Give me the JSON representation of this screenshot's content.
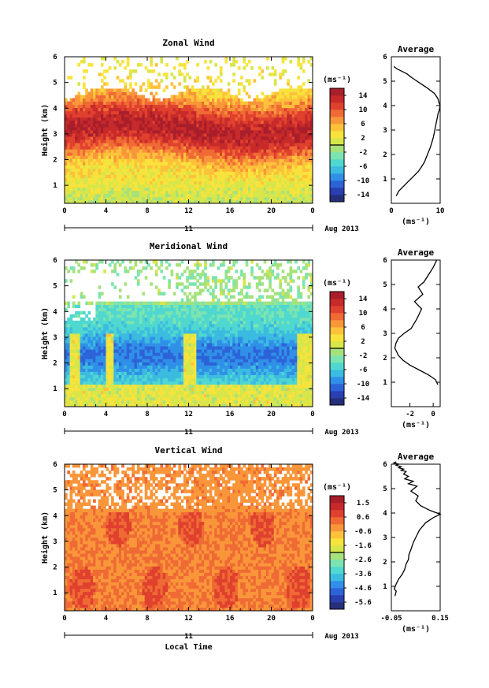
{
  "chart_data": [
    {
      "type": "heatmap",
      "title": "Zonal Wind",
      "ylabel": "Height (km)",
      "xticks": [
        "0",
        "4",
        "8",
        "12",
        "16",
        "20",
        "0"
      ],
      "yticks": [
        "1",
        "2",
        "3",
        "4",
        "5",
        "6"
      ],
      "xlim": [
        0,
        24
      ],
      "ylim": [
        0.3,
        6
      ],
      "date_label": "Aug 2013",
      "day_label": "11",
      "colorbar": {
        "unit": "(ms⁻¹)",
        "ticks": [
          "14",
          "10",
          "6",
          "2",
          "-2",
          "-6",
          "-10",
          "-14"
        ],
        "range": [
          -16,
          16
        ],
        "colors": [
          "#262f7a",
          "#2a3fb0",
          "#2d63d8",
          "#3090e8",
          "#3cbbe0",
          "#4fd8d0",
          "#7be4b0",
          "#a6e27c",
          "#d7e64a",
          "#f8e33c",
          "#fdc23a",
          "#f9963a",
          "#ef6a34",
          "#e0402e",
          "#c72a2a",
          "#a81e2a"
        ]
      }
    },
    {
      "type": "line",
      "title": "Average",
      "xlabel": "(ms⁻¹)",
      "xticks": [
        "0",
        "10"
      ],
      "xlim": [
        0,
        10
      ],
      "yticks": [
        "1",
        "2",
        "3",
        "4",
        "5",
        "6"
      ],
      "ylim": [
        0,
        6
      ],
      "series": [
        {
          "x": [
            1,
            1.5,
            2.5,
            3.5,
            4.5,
            5.5,
            6.2,
            6.8,
            7.2,
            7.6,
            8,
            8.3,
            8.6,
            8.8,
            9.0,
            9.2,
            9.3,
            9.4,
            9.5,
            9.6,
            9.8,
            9.9,
            10,
            9.8,
            9.5,
            8.8,
            7.5,
            6,
            4.5,
            3.8,
            3.2,
            2.2,
            1.2,
            0.5
          ],
          "y": [
            0.3,
            0.5,
            0.7,
            0.9,
            1.1,
            1.3,
            1.5,
            1.7,
            1.9,
            2.1,
            2.3,
            2.5,
            2.7,
            2.9,
            3.1,
            3.3,
            3.4,
            3.5,
            3.6,
            3.7,
            3.8,
            3.9,
            4.0,
            4.1,
            4.3,
            4.5,
            4.7,
            4.9,
            5.1,
            5.2,
            5.3,
            5.4,
            5.5,
            5.6
          ]
        }
      ]
    },
    {
      "type": "heatmap",
      "title": "Meridional Wind",
      "ylabel": "Height (km)",
      "xticks": [
        "0",
        "4",
        "8",
        "12",
        "16",
        "20",
        "0"
      ],
      "yticks": [
        "1",
        "2",
        "3",
        "4",
        "5",
        "6"
      ],
      "xlim": [
        0,
        24
      ],
      "ylim": [
        0.3,
        6
      ],
      "date_label": "Aug 2013",
      "day_label": "11",
      "colorbar": {
        "unit": "(ms⁻¹)",
        "ticks": [
          "14",
          "10",
          "6",
          "2",
          "-2",
          "-6",
          "-10",
          "-14"
        ],
        "range": [
          -16,
          16
        ],
        "colors": [
          "#262f7a",
          "#2a3fb0",
          "#2d63d8",
          "#3090e8",
          "#3cbbe0",
          "#4fd8d0",
          "#7be4b0",
          "#a6e27c",
          "#d7e64a",
          "#f8e33c",
          "#fdc23a",
          "#f9963a",
          "#ef6a34",
          "#e0402e",
          "#c72a2a",
          "#a81e2a"
        ]
      }
    },
    {
      "type": "line",
      "title": "Average",
      "xlabel": "(ms⁻¹)",
      "xticks": [
        "-2",
        "0"
      ],
      "xlim": [
        -3.6,
        0.6
      ],
      "yticks": [
        "1",
        "2",
        "3",
        "4",
        "5",
        "6"
      ],
      "ylim": [
        0,
        6
      ],
      "series": [
        {
          "x": [
            0.4,
            0.2,
            -0.4,
            -1.2,
            -2,
            -2.6,
            -3.0,
            -3.3,
            -3.2,
            -3.0,
            -2.5,
            -1.9,
            -1.4,
            -1.0,
            -1.6,
            -0.9,
            -1.3,
            -0.8,
            -0.4,
            0,
            0.1,
            0.2,
            0.3
          ],
          "y": [
            0.9,
            1.1,
            1.3,
            1.5,
            1.7,
            1.9,
            2.1,
            2.4,
            2.6,
            2.8,
            3.0,
            3.2,
            3.6,
            4.0,
            4.3,
            4.6,
            4.9,
            5.1,
            5.4,
            5.7,
            5.8,
            5.9,
            6.0
          ]
        }
      ]
    },
    {
      "type": "heatmap",
      "title": "Vertical Wind",
      "ylabel": "Height (km)",
      "xlabel": "Local Time",
      "xticks": [
        "0",
        "4",
        "8",
        "12",
        "16",
        "20",
        "0"
      ],
      "yticks": [
        "1",
        "2",
        "3",
        "4",
        "5",
        "6"
      ],
      "xlim": [
        0,
        24
      ],
      "ylim": [
        0.3,
        6
      ],
      "date_label": "Aug 2013",
      "day_label": "11",
      "colorbar": {
        "unit": "(ms⁻¹)",
        "ticks": [
          "1.5",
          "0.6",
          "-0.6",
          "-1.6",
          "-2.6",
          "-3.6",
          "-4.6",
          "-5.6"
        ],
        "range": [
          -6.0,
          2.0
        ],
        "colors": [
          "#262f7a",
          "#2a3fb0",
          "#2d63d8",
          "#3090e8",
          "#3cbbe0",
          "#4fd8d0",
          "#7be4b0",
          "#a6e27c",
          "#d7e64a",
          "#f8e33c",
          "#fdc23a",
          "#f9963a",
          "#ef6a34",
          "#e0402e",
          "#c72a2a",
          "#a81e2a"
        ]
      }
    },
    {
      "type": "line",
      "title": "Average",
      "xlabel": "(ms⁻¹)",
      "xticks": [
        "-0.05",
        "0.15"
      ],
      "xlim": [
        -0.05,
        0.15
      ],
      "yticks": [
        "1",
        "2",
        "3",
        "4",
        "5",
        "6"
      ],
      "ylim": [
        0,
        6
      ],
      "series": [
        {
          "x": [
            -0.035,
            -0.03,
            -0.038,
            -0.03,
            -0.02,
            -0.005,
            0.005,
            0.01,
            0.02,
            0.022,
            0.03,
            0.04,
            0.05,
            0.065,
            0.09,
            0.12,
            0.15,
            0.11,
            0.07,
            0.05,
            0.06,
            0.03,
            0.055,
            0.02,
            0.04,
            0.005,
            0.02,
            0.0,
            0.01,
            -0.01,
            0.0,
            -0.02,
            -0.01,
            -0.03,
            -0.02,
            -0.04,
            -0.03
          ],
          "y": [
            0.6,
            0.8,
            0.9,
            1.1,
            1.3,
            1.5,
            1.7,
            1.9,
            2.1,
            2.3,
            2.5,
            2.8,
            3.0,
            3.3,
            3.6,
            3.8,
            3.95,
            4.1,
            4.3,
            4.5,
            4.7,
            4.9,
            5.1,
            5.2,
            5.3,
            5.4,
            5.5,
            5.6,
            5.7,
            5.75,
            5.8,
            5.85,
            5.9,
            5.95,
            6.0,
            6.05,
            6.1
          ]
        }
      ]
    }
  ]
}
